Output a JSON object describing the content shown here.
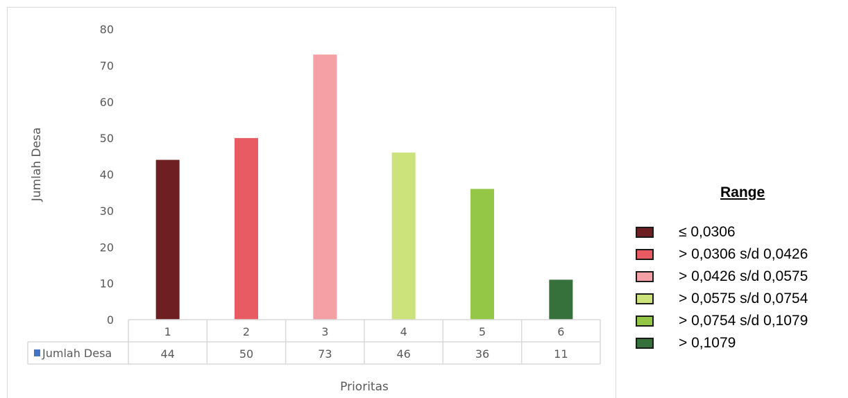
{
  "chart_data": {
    "type": "bar",
    "categories": [
      "1",
      "2",
      "3",
      "4",
      "5",
      "6"
    ],
    "values": [
      44,
      50,
      73,
      46,
      36,
      11
    ],
    "bar_colors": [
      "#6d1f21",
      "#e85b62",
      "#f4a0a5",
      "#cce27a",
      "#93c745",
      "#36703a"
    ],
    "xlabel": "Prioritas",
    "ylabel": "Jumlah Desa",
    "ylim": [
      0,
      80
    ],
    "yticks": [
      0,
      10,
      20,
      30,
      40,
      50,
      60,
      70,
      80
    ],
    "grid": false,
    "data_table": {
      "row_label": "Jumlah Desa",
      "row_marker_color": "#4472c4",
      "values": [
        "44",
        "50",
        "73",
        "46",
        "36",
        "11"
      ]
    },
    "legend": {
      "title": "Range",
      "placement": "right",
      "items": [
        {
          "label": "≤ 0,0306",
          "color": "#6d1f21"
        },
        {
          "label": "> 0,0306 s/d 0,0426",
          "color": "#e85b62"
        },
        {
          "label": "> 0,0426 s/d 0,0575",
          "color": "#f4a0a5"
        },
        {
          "label": "> 0,0575 s/d 0,0754",
          "color": "#cce27a"
        },
        {
          "label": "> 0,0754 s/d 0,1079",
          "color": "#93c745"
        },
        {
          "label": "> 0,1079",
          "color": "#36703a"
        }
      ]
    }
  }
}
